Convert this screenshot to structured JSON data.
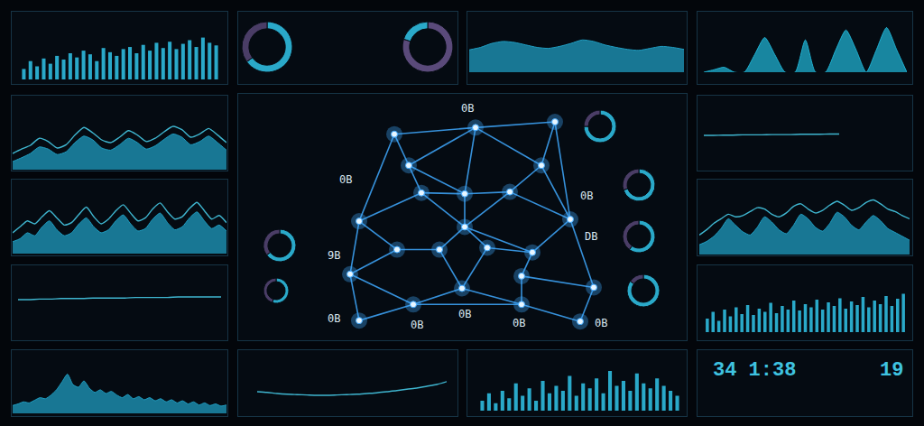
{
  "chart_data": [
    {
      "type": "bar",
      "color": "#2aa9c9",
      "x": [
        0,
        1,
        2,
        3,
        4,
        5,
        6,
        7,
        8,
        9,
        10,
        11,
        12,
        13,
        14,
        15,
        16,
        17,
        18,
        19,
        20,
        21,
        22,
        23,
        24,
        25,
        26,
        27,
        28,
        29
      ],
      "values": [
        20,
        35,
        25,
        40,
        30,
        45,
        38,
        50,
        42,
        55,
        48,
        35,
        60,
        52,
        45,
        58,
        62,
        50,
        66,
        55,
        70,
        60,
        72,
        58,
        68,
        75,
        62,
        80,
        70,
        65
      ],
      "xlim": [
        -0.6,
        29.6
      ],
      "ylim": [
        0,
        100
      ],
      "tick_labels": false,
      "grid": false
    },
    {
      "type": "area",
      "x": [
        0,
        1,
        2,
        3,
        4,
        5,
        6,
        7,
        8,
        9,
        10,
        11,
        12,
        13,
        14,
        15,
        16,
        17,
        18,
        19,
        20,
        21,
        22,
        23,
        24
      ],
      "series": [
        {
          "type": "area",
          "color": "#1f9cc0",
          "values": [
            15,
            22,
            30,
            42,
            38,
            28,
            33,
            50,
            62,
            55,
            40,
            36,
            46,
            58,
            50,
            38,
            44,
            56,
            66,
            60,
            46,
            52,
            62,
            50,
            36
          ]
        },
        {
          "type": "line",
          "color": "#3fb6d0",
          "values": [
            30,
            38,
            45,
            58,
            52,
            40,
            46,
            64,
            78,
            68,
            55,
            50,
            60,
            72,
            64,
            52,
            58,
            70,
            80,
            74,
            60,
            66,
            76,
            64,
            50
          ]
        }
      ],
      "xlim": [
        0,
        24
      ],
      "ylim": [
        0,
        100
      ],
      "tick_labels": false,
      "grid": false
    },
    {
      "type": "area",
      "x": [
        0,
        1,
        2,
        3,
        4,
        5,
        6,
        7,
        8,
        9,
        10,
        11,
        12,
        13,
        14,
        15,
        16,
        17,
        18,
        19,
        20,
        21,
        22,
        23,
        24,
        25,
        26,
        27,
        28,
        29
      ],
      "series": [
        {
          "type": "area",
          "color": "#1f9cc0",
          "values": [
            20,
            25,
            35,
            30,
            45,
            55,
            40,
            30,
            35,
            50,
            60,
            45,
            35,
            40,
            55,
            65,
            50,
            38,
            42,
            58,
            68,
            52,
            40,
            45,
            60,
            70,
            55,
            42,
            48,
            38
          ]
        },
        {
          "type": "line",
          "color": "#3fb6d0",
          "values": [
            35,
            45,
            55,
            50,
            62,
            72,
            60,
            48,
            52,
            66,
            78,
            62,
            50,
            58,
            72,
            82,
            68,
            55,
            60,
            75,
            85,
            70,
            58,
            62,
            76,
            86,
            72,
            58,
            64,
            52
          ]
        }
      ],
      "xlim": [
        0,
        29
      ],
      "ylim": [
        0,
        100
      ],
      "tick_labels": false,
      "grid": false
    },
    {
      "type": "line",
      "color": "#3fb6d0",
      "x": [
        0,
        1,
        2,
        3,
        4,
        5,
        6,
        7,
        8,
        9,
        10,
        11,
        12,
        13,
        14,
        15,
        16,
        17,
        18,
        19
      ],
      "values": [
        55,
        55,
        56,
        56,
        57,
        57,
        57,
        58,
        58,
        58,
        58,
        59,
        59,
        59,
        59,
        60,
        60,
        60,
        60,
        60
      ],
      "xlim": [
        0,
        19
      ],
      "ylim": [
        0,
        100
      ],
      "tick_labels": false,
      "grid": false
    },
    {
      "type": "area",
      "color": "#1f9cc0",
      "x": [
        0,
        1,
        2,
        3,
        4,
        5,
        6,
        7,
        8,
        9,
        10,
        11,
        12,
        13,
        14,
        15,
        16,
        17,
        18,
        19,
        20,
        21,
        22,
        23,
        24,
        25,
        26,
        27,
        28,
        29,
        30,
        31,
        32,
        33,
        34,
        35,
        36,
        37,
        38,
        39
      ],
      "values": [
        15,
        18,
        22,
        20,
        25,
        30,
        28,
        35,
        45,
        60,
        75,
        55,
        50,
        62,
        48,
        40,
        45,
        38,
        42,
        35,
        30,
        36,
        28,
        32,
        26,
        30,
        24,
        28,
        22,
        26,
        20,
        24,
        18,
        22,
        16,
        20,
        15,
        18,
        14,
        16
      ],
      "xlim": [
        0,
        39
      ],
      "ylim": [
        0,
        100
      ],
      "tick_labels": false,
      "grid": false
    },
    {
      "type": "pie",
      "values": [
        65,
        35
      ],
      "colors": [
        "#2aa9c9",
        "#4a3d66"
      ]
    },
    {
      "type": "pie",
      "values": [
        80,
        20
      ],
      "colors": [
        "#5a4a7a",
        "#2aa9c9"
      ]
    },
    {
      "type": "area",
      "color": "#1f9cc0",
      "x": [
        0,
        1,
        2,
        3,
        4,
        5,
        6,
        7,
        8,
        9,
        10,
        11,
        12,
        13,
        14,
        15,
        16,
        17,
        18,
        19
      ],
      "values": [
        45,
        50,
        58,
        62,
        60,
        55,
        50,
        48,
        52,
        58,
        65,
        62,
        55,
        50,
        46,
        44,
        48,
        52,
        50,
        46
      ],
      "xlim": [
        0,
        19
      ],
      "ylim": [
        0,
        100
      ],
      "tick_labels": false,
      "grid": false
    },
    {
      "type": "network",
      "color": "#3fa9ff",
      "x": [
        437,
        527,
        615,
        453,
        467,
        515,
        565,
        600,
        398,
        515,
        632,
        440,
        487,
        540,
        590,
        388,
        512,
        578,
        658,
        398,
        458,
        578,
        643
      ],
      "y": [
        150,
        143,
        137,
        183,
        212,
        213,
        211,
        183,
        242,
        248,
        240,
        272,
        272,
        270,
        275,
        298,
        313,
        300,
        312,
        347,
        330,
        330,
        348
      ],
      "edges": [
        [
          0,
          1
        ],
        [
          1,
          2
        ],
        [
          0,
          3
        ],
        [
          0,
          8
        ],
        [
          1,
          3
        ],
        [
          1,
          5
        ],
        [
          1,
          7
        ],
        [
          2,
          7
        ],
        [
          2,
          10
        ],
        [
          3,
          4
        ],
        [
          3,
          5
        ],
        [
          4,
          5
        ],
        [
          4,
          8
        ],
        [
          4,
          9
        ],
        [
          5,
          6
        ],
        [
          5,
          9
        ],
        [
          6,
          7
        ],
        [
          6,
          9
        ],
        [
          6,
          10
        ],
        [
          7,
          10
        ],
        [
          8,
          11
        ],
        [
          8,
          15
        ],
        [
          9,
          12
        ],
        [
          9,
          13
        ],
        [
          9,
          14
        ],
        [
          10,
          14
        ],
        [
          10,
          18
        ],
        [
          11,
          12
        ],
        [
          11,
          15
        ],
        [
          12,
          16
        ],
        [
          13,
          16
        ],
        [
          13,
          14
        ],
        [
          14,
          17
        ],
        [
          17,
          18
        ],
        [
          15,
          19
        ],
        [
          15,
          20
        ],
        [
          16,
          20
        ],
        [
          16,
          21
        ],
        [
          17,
          21
        ],
        [
          18,
          22
        ],
        [
          21,
          22
        ],
        [
          19,
          20
        ],
        [
          20,
          21
        ]
      ],
      "labels": [
        {
          "text": "0B",
          "x": 518,
          "y": 123
        },
        {
          "text": "0B",
          "x": 383,
          "y": 198
        },
        {
          "text": "9B",
          "x": 370,
          "y": 278
        },
        {
          "text": "0B",
          "x": 650,
          "y": 215
        },
        {
          "text": "DB",
          "x": 655,
          "y": 258
        },
        {
          "text": "0B",
          "x": 370,
          "y": 345
        },
        {
          "text": "0B",
          "x": 462,
          "y": 352
        },
        {
          "text": "0B",
          "x": 515,
          "y": 340
        },
        {
          "text": "0B",
          "x": 575,
          "y": 350
        },
        {
          "text": "0B",
          "x": 666,
          "y": 350
        }
      ],
      "xlim": [
        358,
        690
      ],
      "ylim": [
        365,
        115
      ],
      "tick_labels": false,
      "grid": false
    },
    {
      "type": "pie",
      "values": [
        75,
        25
      ],
      "colors": [
        "#2aa9c9",
        "#4a3d66"
      ]
    },
    {
      "type": "pie",
      "values": [
        70,
        30
      ],
      "colors": [
        "#2aa9c9",
        "#4a3d66"
      ]
    },
    {
      "type": "pie",
      "values": [
        60,
        40
      ],
      "colors": [
        "#2aa9c9",
        "#4a3d66"
      ]
    },
    {
      "type": "pie",
      "values": [
        85,
        15
      ],
      "colors": [
        "#2aa9c9",
        "#4a3d66"
      ]
    },
    {
      "type": "pie",
      "values": [
        65,
        35
      ],
      "colors": [
        "#2aa9c9",
        "#4a3d66"
      ]
    },
    {
      "type": "pie",
      "values": [
        55,
        45
      ],
      "colors": [
        "#2aa9c9",
        "#4a3d66"
      ]
    },
    {
      "type": "line",
      "color": "#3fb6d0",
      "x": [
        0,
        1,
        2,
        3,
        4,
        5,
        6,
        7,
        8,
        9,
        10,
        11,
        12,
        13,
        14,
        15,
        16,
        17,
        18,
        19
      ],
      "values": [
        40,
        38,
        35,
        33,
        32,
        31,
        30,
        30,
        31,
        32,
        33,
        35,
        37,
        40,
        43,
        47,
        50,
        55,
        60,
        68
      ],
      "xlim": [
        0,
        19
      ],
      "ylim": [
        0,
        100
      ],
      "tick_labels": false,
      "grid": false
    },
    {
      "type": "bar",
      "color": "#2aa9c9",
      "x": [
        0,
        1,
        2,
        3,
        4,
        5,
        6,
        7,
        8,
        9,
        10,
        11,
        12,
        13,
        14,
        15,
        16,
        17,
        18,
        19,
        20,
        21,
        22,
        23,
        24,
        25,
        26,
        27,
        28,
        29
      ],
      "values": [
        20,
        35,
        15,
        40,
        25,
        55,
        30,
        45,
        20,
        60,
        35,
        50,
        40,
        70,
        30,
        55,
        45,
        65,
        35,
        80,
        50,
        60,
        40,
        75,
        55,
        45,
        65,
        50,
        40,
        30
      ],
      "xlim": [
        -0.6,
        29.6
      ],
      "ylim": [
        0,
        100
      ],
      "tick_labels": false,
      "grid": false
    },
    {
      "type": "area",
      "color": "#1fb0d0",
      "x": [
        0,
        1,
        2,
        3,
        4,
        5,
        6,
        7,
        8,
        9,
        10,
        11,
        12,
        13,
        14,
        15,
        16,
        17,
        18,
        19,
        20
      ],
      "values": [
        0,
        5,
        10,
        0,
        0,
        35,
        70,
        35,
        0,
        0,
        65,
        0,
        0,
        45,
        85,
        45,
        0,
        45,
        90,
        45,
        0
      ],
      "xlim": [
        0,
        20
      ],
      "ylim": [
        0,
        100
      ],
      "tick_labels": false,
      "grid": false
    },
    {
      "type": "line",
      "color": "#3fb6d0",
      "x": [
        0,
        1,
        2,
        3,
        4,
        5,
        6,
        7,
        8,
        9,
        10,
        11,
        12,
        13,
        14
      ],
      "values": [
        50,
        50,
        51,
        51,
        52,
        52,
        52,
        53,
        53,
        53,
        54,
        54,
        54,
        55,
        55
      ],
      "xlim": [
        0,
        14
      ],
      "ylim": [
        0,
        100
      ],
      "tick_labels": false,
      "grid": false
    },
    {
      "type": "area",
      "x": [
        0,
        1,
        2,
        3,
        4,
        5,
        6,
        7,
        8,
        9,
        10,
        11,
        12,
        13,
        14,
        15,
        16,
        17,
        18,
        19,
        20,
        21,
        22,
        23,
        24,
        25,
        26,
        27,
        28,
        29
      ],
      "series": [
        {
          "type": "area",
          "color": "#1f9cc0",
          "values": [
            15,
            20,
            28,
            40,
            55,
            45,
            35,
            30,
            42,
            58,
            50,
            38,
            32,
            45,
            62,
            55,
            42,
            36,
            48,
            65,
            58,
            45,
            38,
            50,
            60,
            52,
            40,
            34,
            28,
            22
          ]
        },
        {
          "type": "line",
          "color": "#3fb6d0",
          "values": [
            30,
            38,
            48,
            55,
            62,
            58,
            60,
            66,
            72,
            70,
            62,
            58,
            64,
            74,
            78,
            70,
            64,
            68,
            76,
            82,
            76,
            68,
            72,
            80,
            84,
            78,
            70,
            66,
            60,
            55
          ]
        }
      ],
      "xlim": [
        0,
        29
      ],
      "ylim": [
        0,
        100
      ],
      "tick_labels": false,
      "grid": false
    },
    {
      "type": "bar",
      "color": "#2aa9c9",
      "x": [
        0,
        1,
        2,
        3,
        4,
        5,
        6,
        7,
        8,
        9,
        10,
        11,
        12,
        13,
        14,
        15,
        16,
        17,
        18,
        19,
        20,
        21,
        22,
        23,
        24,
        25,
        26,
        27,
        28,
        29,
        30,
        31,
        32,
        33,
        34
      ],
      "values": [
        30,
        45,
        25,
        50,
        35,
        55,
        40,
        60,
        38,
        52,
        45,
        65,
        42,
        58,
        50,
        70,
        48,
        62,
        55,
        72,
        50,
        66,
        58,
        75,
        52,
        68,
        60,
        78,
        55,
        70,
        62,
        80,
        58,
        74,
        85
      ],
      "xlim": [
        -0.6,
        34.6
      ],
      "ylim": [
        0,
        100
      ],
      "tick_labels": false,
      "grid": false
    }
  ],
  "readouts": [
    "34 1:38",
    "19"
  ]
}
